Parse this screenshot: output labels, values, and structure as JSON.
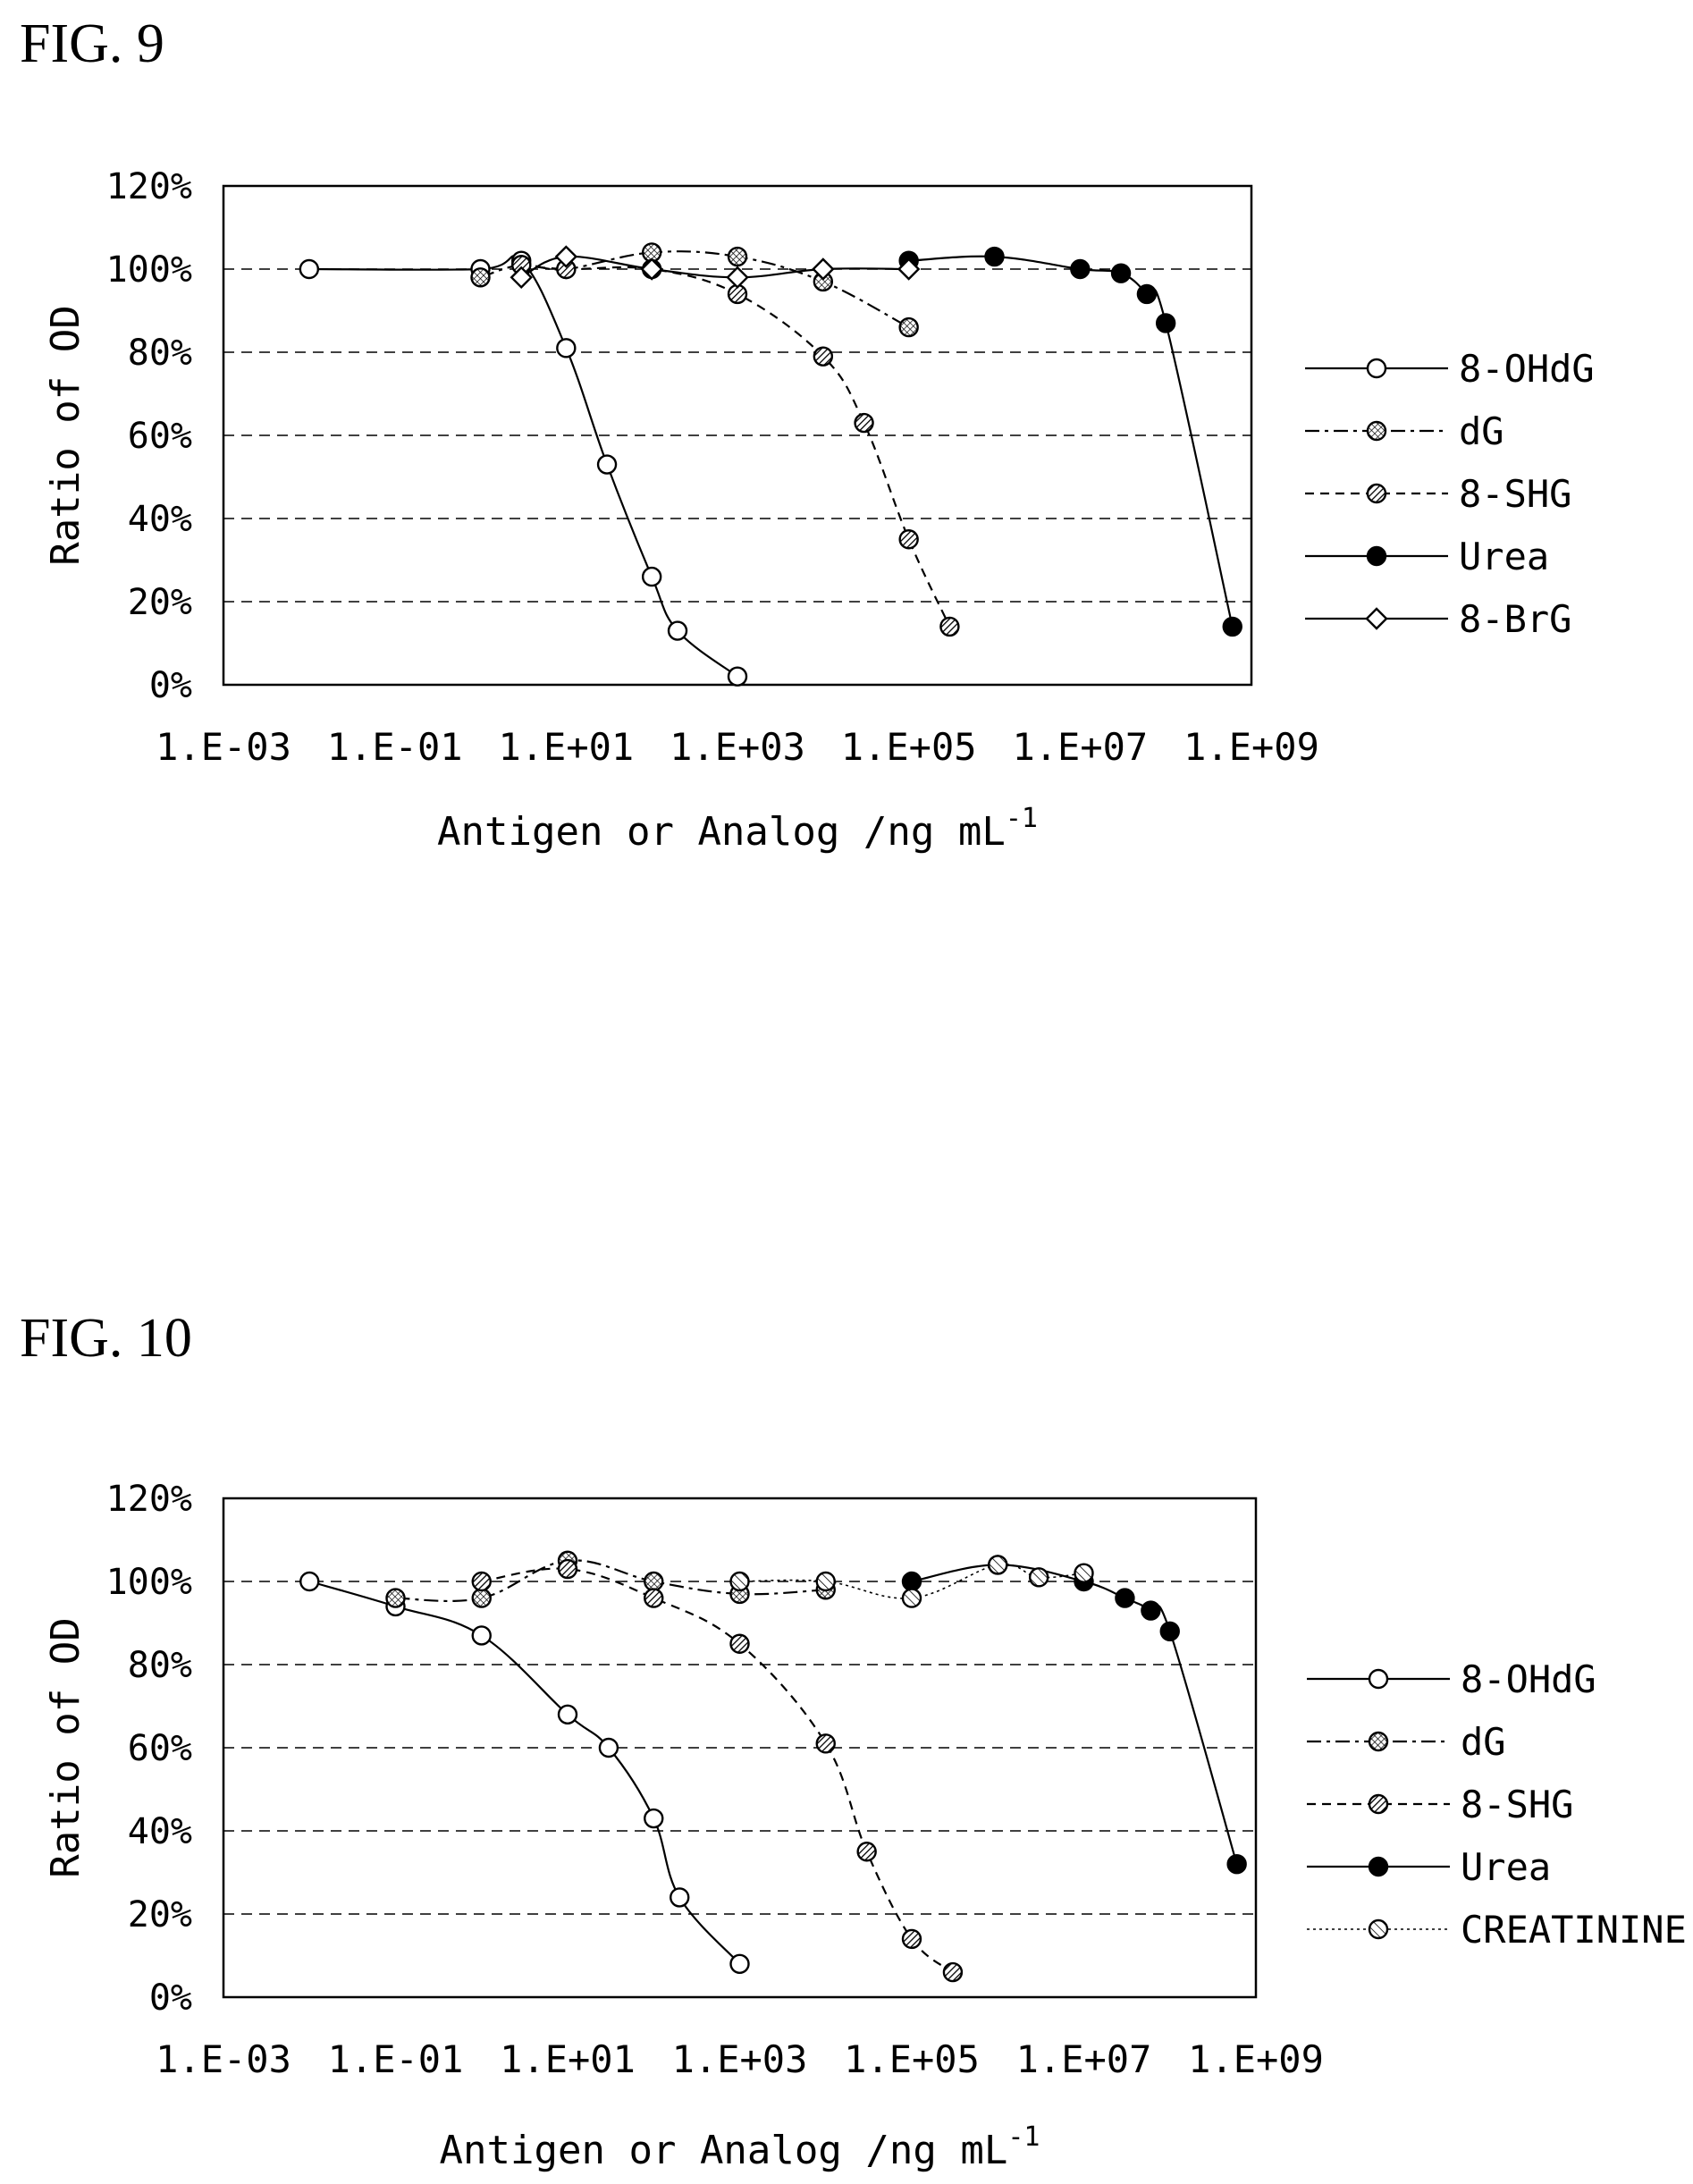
{
  "figures": [
    {
      "label": "FIG. 9"
    },
    {
      "label": "FIG. 10"
    }
  ],
  "chart_data": [
    {
      "type": "line",
      "x_scale": "log10",
      "xlim": [
        0.001,
        1000000000
      ],
      "ylim": [
        0,
        120
      ],
      "xlabel": "Antigen or Analog /ng mL",
      "xlabel_superscript": "-1",
      "ylabel": "Ratio of OD",
      "x_ticks": [
        "1.E-03",
        "1.E-01",
        "1.E+01",
        "1.E+03",
        "1.E+05",
        "1.E+07",
        "1.E+09"
      ],
      "y_ticks": [
        "0%",
        "20%",
        "40%",
        "60%",
        "80%",
        "100%",
        "120%"
      ],
      "grid": "horizontal dashed",
      "legend_position": "right",
      "series": [
        {
          "name": "8-OHdG",
          "marker": "open-circle",
          "line": "solid",
          "color": "#000000",
          "points": [
            [
              0.01,
              100
            ],
            [
              1,
              100
            ],
            [
              3,
              102
            ],
            [
              10,
              81
            ],
            [
              30,
              53
            ],
            [
              100,
              26
            ],
            [
              200,
              13
            ],
            [
              1000,
              2
            ]
          ]
        },
        {
          "name": "dG",
          "marker": "crosshatch-circle",
          "line": "dashdot",
          "color": "#000000",
          "points": [
            [
              1,
              98
            ],
            [
              3,
              101
            ],
            [
              10,
              100
            ],
            [
              100,
              104
            ],
            [
              1000,
              103
            ],
            [
              10000,
              97
            ],
            [
              100000,
              86
            ]
          ]
        },
        {
          "name": "8-SHG",
          "marker": "hatched-circle",
          "line": "dashed",
          "color": "#000000",
          "points": [
            [
              3,
              101
            ],
            [
              10,
              100
            ],
            [
              100,
              100
            ],
            [
              1000,
              94
            ],
            [
              10000,
              79
            ],
            [
              30000,
              63
            ],
            [
              100000,
              35
            ],
            [
              300000,
              14
            ]
          ]
        },
        {
          "name": "Urea",
          "marker": "filled-circle",
          "line": "solid",
          "color": "#000000",
          "points": [
            [
              100000,
              102
            ],
            [
              1000000,
              103
            ],
            [
              10000000,
              100
            ],
            [
              30000000,
              99
            ],
            [
              60000000,
              94
            ],
            [
              100000000,
              87
            ],
            [
              600000000,
              14
            ]
          ]
        },
        {
          "name": "8-BrG",
          "marker": "open-diamond",
          "line": "solid",
          "color": "#000000",
          "points": [
            [
              3,
              98
            ],
            [
              10,
              103
            ],
            [
              100,
              100
            ],
            [
              1000,
              98
            ],
            [
              10000,
              100
            ],
            [
              100000,
              100
            ]
          ]
        }
      ]
    },
    {
      "type": "line",
      "x_scale": "log10",
      "xlim": [
        0.001,
        1000000000
      ],
      "ylim": [
        0,
        120
      ],
      "xlabel": "Antigen or Analog /ng mL",
      "xlabel_superscript": "-1",
      "ylabel": "Ratio of OD",
      "x_ticks": [
        "1.E-03",
        "1.E-01",
        "1.E+01",
        "1.E+03",
        "1.E+05",
        "1.E+07",
        "1.E+09"
      ],
      "y_ticks": [
        "0%",
        "20%",
        "40%",
        "60%",
        "80%",
        "100%",
        "120%"
      ],
      "grid": "horizontal dashed",
      "legend_position": "right",
      "series": [
        {
          "name": "8-OHdG",
          "marker": "open-circle",
          "line": "solid",
          "color": "#000000",
          "points": [
            [
              0.01,
              100
            ],
            [
              0.1,
              94
            ],
            [
              1,
              87
            ],
            [
              10,
              68
            ],
            [
              30,
              60
            ],
            [
              100,
              43
            ],
            [
              200,
              24
            ],
            [
              1000,
              8
            ]
          ]
        },
        {
          "name": "dG",
          "marker": "crosshatch-circle",
          "line": "dashdot",
          "color": "#000000",
          "points": [
            [
              0.1,
              96
            ],
            [
              1,
              96
            ],
            [
              10,
              105
            ],
            [
              100,
              100
            ],
            [
              1000,
              97
            ],
            [
              10000,
              98
            ]
          ]
        },
        {
          "name": "8-SHG",
          "marker": "hatched-circle",
          "line": "dashed",
          "color": "#000000",
          "points": [
            [
              1,
              100
            ],
            [
              10,
              103
            ],
            [
              100,
              96
            ],
            [
              1000,
              85
            ],
            [
              10000,
              61
            ],
            [
              30000,
              35
            ],
            [
              100000,
              14
            ],
            [
              300000,
              6
            ]
          ]
        },
        {
          "name": "Urea",
          "marker": "filled-circle",
          "line": "solid",
          "color": "#000000",
          "points": [
            [
              100000,
              100
            ],
            [
              1000000,
              104
            ],
            [
              10000000,
              100
            ],
            [
              30000000,
              96
            ],
            [
              60000000,
              93
            ],
            [
              100000000,
              88
            ],
            [
              600000000,
              32
            ]
          ]
        },
        {
          "name": "CREATININE",
          "marker": "slashed-circle",
          "line": "dotted",
          "color": "#000000",
          "points": [
            [
              1000,
              100
            ],
            [
              10000,
              100
            ],
            [
              100000,
              96
            ],
            [
              1000000,
              104
            ],
            [
              3000000,
              101
            ],
            [
              10000000,
              102
            ]
          ]
        }
      ]
    }
  ]
}
